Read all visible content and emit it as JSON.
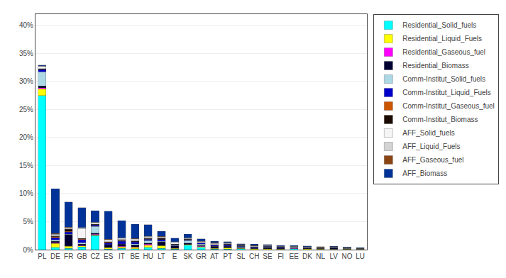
{
  "chart_data": {
    "type": "bar",
    "stacked": true,
    "grid": true,
    "legend": "right",
    "categories": [
      "PL",
      "DE",
      "FR",
      "GB",
      "CZ",
      "ES",
      "IT",
      "BE",
      "HU",
      "LT",
      "E",
      "SK",
      "GR",
      "AT",
      "PT",
      "SL",
      "CH",
      "SE",
      "FI",
      "EE",
      "DK",
      "NL",
      "LV",
      "NO",
      "LU"
    ],
    "series": [
      {
        "name": "Residential_Solid_fuels",
        "color": "#00FFFF",
        "values": [
          27.5,
          0.4,
          0.2,
          0.5,
          2.5,
          0.1,
          0.2,
          0.15,
          0.4,
          0.2,
          0.08,
          0.8,
          0.4,
          0.08,
          0.08,
          0.15,
          0.06,
          0.04,
          0.04,
          0.15,
          0.04,
          0.04,
          0.04,
          0.04,
          0.04
        ]
      },
      {
        "name": "Residential_Liquid_Fuels",
        "color": "#FFFF00",
        "values": [
          1.2,
          0.7,
          0.4,
          0.15,
          0.15,
          0.25,
          0.3,
          0.25,
          0.4,
          0.5,
          0.15,
          0.1,
          0.15,
          0.15,
          0.25,
          0.08,
          0.08,
          0.12,
          0.08,
          0.04,
          0.12,
          0.08,
          0.06,
          0.04,
          0.04
        ]
      },
      {
        "name": "Residential_Gaseous_fuel",
        "color": "#FF00FF",
        "values": [
          0.2,
          0.15,
          0.08,
          0.08,
          0.08,
          0.08,
          0.08,
          0.08,
          0.15,
          0.04,
          0.04,
          0.04,
          0.04,
          0.04,
          0.04,
          0.04,
          0.02,
          0.02,
          0.02,
          0.02,
          0.02,
          0.04,
          0.02,
          0.02,
          0.02
        ]
      },
      {
        "name": "Residential_Biomass",
        "color": "#000033",
        "values": [
          0.3,
          0.25,
          2.0,
          0.25,
          0.2,
          0.4,
          0.4,
          0.4,
          0.25,
          0.6,
          0.4,
          0.25,
          0.15,
          0.3,
          0.25,
          0.15,
          0.08,
          0.25,
          0.12,
          0.08,
          0.08,
          0.04,
          0.15,
          0.08,
          0.04
        ]
      },
      {
        "name": "Comm-Institut_Solid_fuels",
        "color": "#ADD8E6",
        "values": [
          2.5,
          0.25,
          0.08,
          0.25,
          1.2,
          0.06,
          0.08,
          0.15,
          0.4,
          0.15,
          0.06,
          0.4,
          0.25,
          0.04,
          0.04,
          0.12,
          0.04,
          0.02,
          0.02,
          0.12,
          0.02,
          0.02,
          0.02,
          0.02,
          0.02
        ]
      },
      {
        "name": "Comm-Institut_Liquid_Fuels",
        "color": "#0000CD",
        "values": [
          0.4,
          0.4,
          0.4,
          0.6,
          0.25,
          0.3,
          0.4,
          0.3,
          0.25,
          0.3,
          0.15,
          0.15,
          0.15,
          0.2,
          0.2,
          0.08,
          0.12,
          0.12,
          0.12,
          0.04,
          0.08,
          0.08,
          0.06,
          0.04,
          0.04
        ]
      },
      {
        "name": "Comm-Institut_Gaseous_fuel",
        "color": "#CC5500",
        "values": [
          0.08,
          0.15,
          0.08,
          0.08,
          0.04,
          0.08,
          0.08,
          0.08,
          0.04,
          0.04,
          0.04,
          0.04,
          0.04,
          0.04,
          0.04,
          0.04,
          0.02,
          0.02,
          0.02,
          0.02,
          0.02,
          0.04,
          0.02,
          0.02,
          0.02
        ]
      },
      {
        "name": "Comm-Institut_Biomass",
        "color": "#1A0A00",
        "values": [
          0.08,
          0.08,
          0.4,
          0.08,
          0.08,
          0.15,
          0.15,
          0.15,
          0.08,
          0.25,
          0.08,
          0.08,
          0.08,
          0.08,
          0.08,
          0.04,
          0.04,
          0.08,
          0.04,
          0.02,
          0.02,
          0.02,
          0.04,
          0.04,
          0.02
        ]
      },
      {
        "name": "AFF_Solid_fuels",
        "color": "#F5F5F5",
        "values": [
          0.4,
          0.15,
          0.15,
          1.8,
          0.3,
          0.25,
          0.15,
          0.15,
          0.25,
          0.15,
          0.25,
          0.15,
          0.15,
          0.15,
          0.12,
          0.12,
          0.08,
          0.06,
          0.06,
          0.06,
          0.06,
          0.06,
          0.04,
          0.04,
          0.02
        ]
      },
      {
        "name": "AFF_Liquid_Fuels",
        "color": "#D3D3D3",
        "values": [
          0.08,
          0.25,
          0.15,
          0.15,
          0.08,
          0.15,
          0.25,
          0.25,
          0.15,
          0.08,
          0.15,
          0.08,
          0.08,
          0.12,
          0.12,
          0.04,
          0.12,
          0.06,
          0.06,
          0.04,
          0.06,
          0.04,
          0.04,
          0.04,
          0.02
        ]
      },
      {
        "name": "AFF_Gaseous_fuel",
        "color": "#8B4513",
        "values": [
          0.04,
          0.08,
          0.06,
          0.04,
          0.04,
          0.06,
          0.06,
          0.06,
          0.06,
          0.04,
          0.04,
          0.04,
          0.04,
          0.04,
          0.04,
          0.04,
          0.04,
          0.02,
          0.02,
          0.02,
          0.02,
          0.02,
          0.02,
          0.02,
          0.02
        ]
      },
      {
        "name": "AFF_Biomass",
        "color": "#003399",
        "values": [
          0.15,
          8.0,
          4.5,
          3.5,
          2.0,
          5.0,
          3.0,
          2.5,
          2.0,
          0.9,
          0.6,
          0.6,
          0.4,
          0.25,
          0.15,
          0.12,
          0.25,
          0.1,
          0.1,
          0.1,
          0.1,
          0.06,
          0.1,
          0.06,
          0.06
        ]
      }
    ],
    "ylim": [
      0,
      42
    ],
    "yticks": [
      {
        "value": 0,
        "label": "0%"
      },
      {
        "value": 5,
        "label": "5%"
      },
      {
        "value": 10,
        "label": "10%"
      },
      {
        "value": 15,
        "label": "15%"
      },
      {
        "value": 20,
        "label": "20%"
      },
      {
        "value": 25,
        "label": "25%"
      },
      {
        "value": 30,
        "label": "30%"
      },
      {
        "value": 35,
        "label": "35%"
      },
      {
        "value": 40,
        "label": "40%"
      }
    ]
  }
}
